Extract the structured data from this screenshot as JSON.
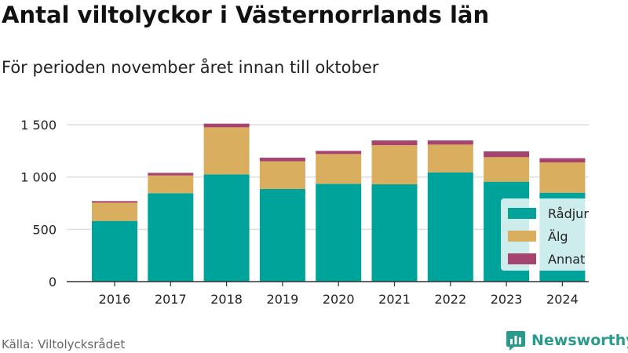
{
  "title": "Antal viltolyckor i Västernorrlands län",
  "subtitle": "För perioden november året innan till oktober",
  "source": "Källa: Viltolycksrådet",
  "brand": {
    "name": "Newsworthy",
    "icon": "newsworthy-logo-icon"
  },
  "colors": {
    "radjur": "#00a39a",
    "alg": "#d9ae5e",
    "annat": "#a6446f",
    "grid": "#dddddd",
    "axis": "#333333",
    "legend_bg": "#ffffff"
  },
  "chart_data": {
    "type": "bar",
    "stacked": true,
    "categories": [
      "2016",
      "2017",
      "2018",
      "2019",
      "2020",
      "2021",
      "2022",
      "2023",
      "2024"
    ],
    "series": [
      {
        "name": "Rådjur",
        "values": [
          580,
          845,
          1025,
          885,
          935,
          930,
          1045,
          955,
          850
        ]
      },
      {
        "name": "Älg",
        "values": [
          175,
          170,
          450,
          265,
          285,
          375,
          265,
          235,
          290
        ]
      },
      {
        "name": "Annat",
        "values": [
          15,
          25,
          35,
          35,
          30,
          45,
          40,
          55,
          40
        ]
      }
    ],
    "ylim": [
      0,
      1500
    ],
    "yticks": [
      0,
      500,
      1000,
      1500
    ],
    "ytick_labels": [
      "0",
      "500",
      "1 000",
      "1 500"
    ],
    "grid": true,
    "legend": "right"
  }
}
